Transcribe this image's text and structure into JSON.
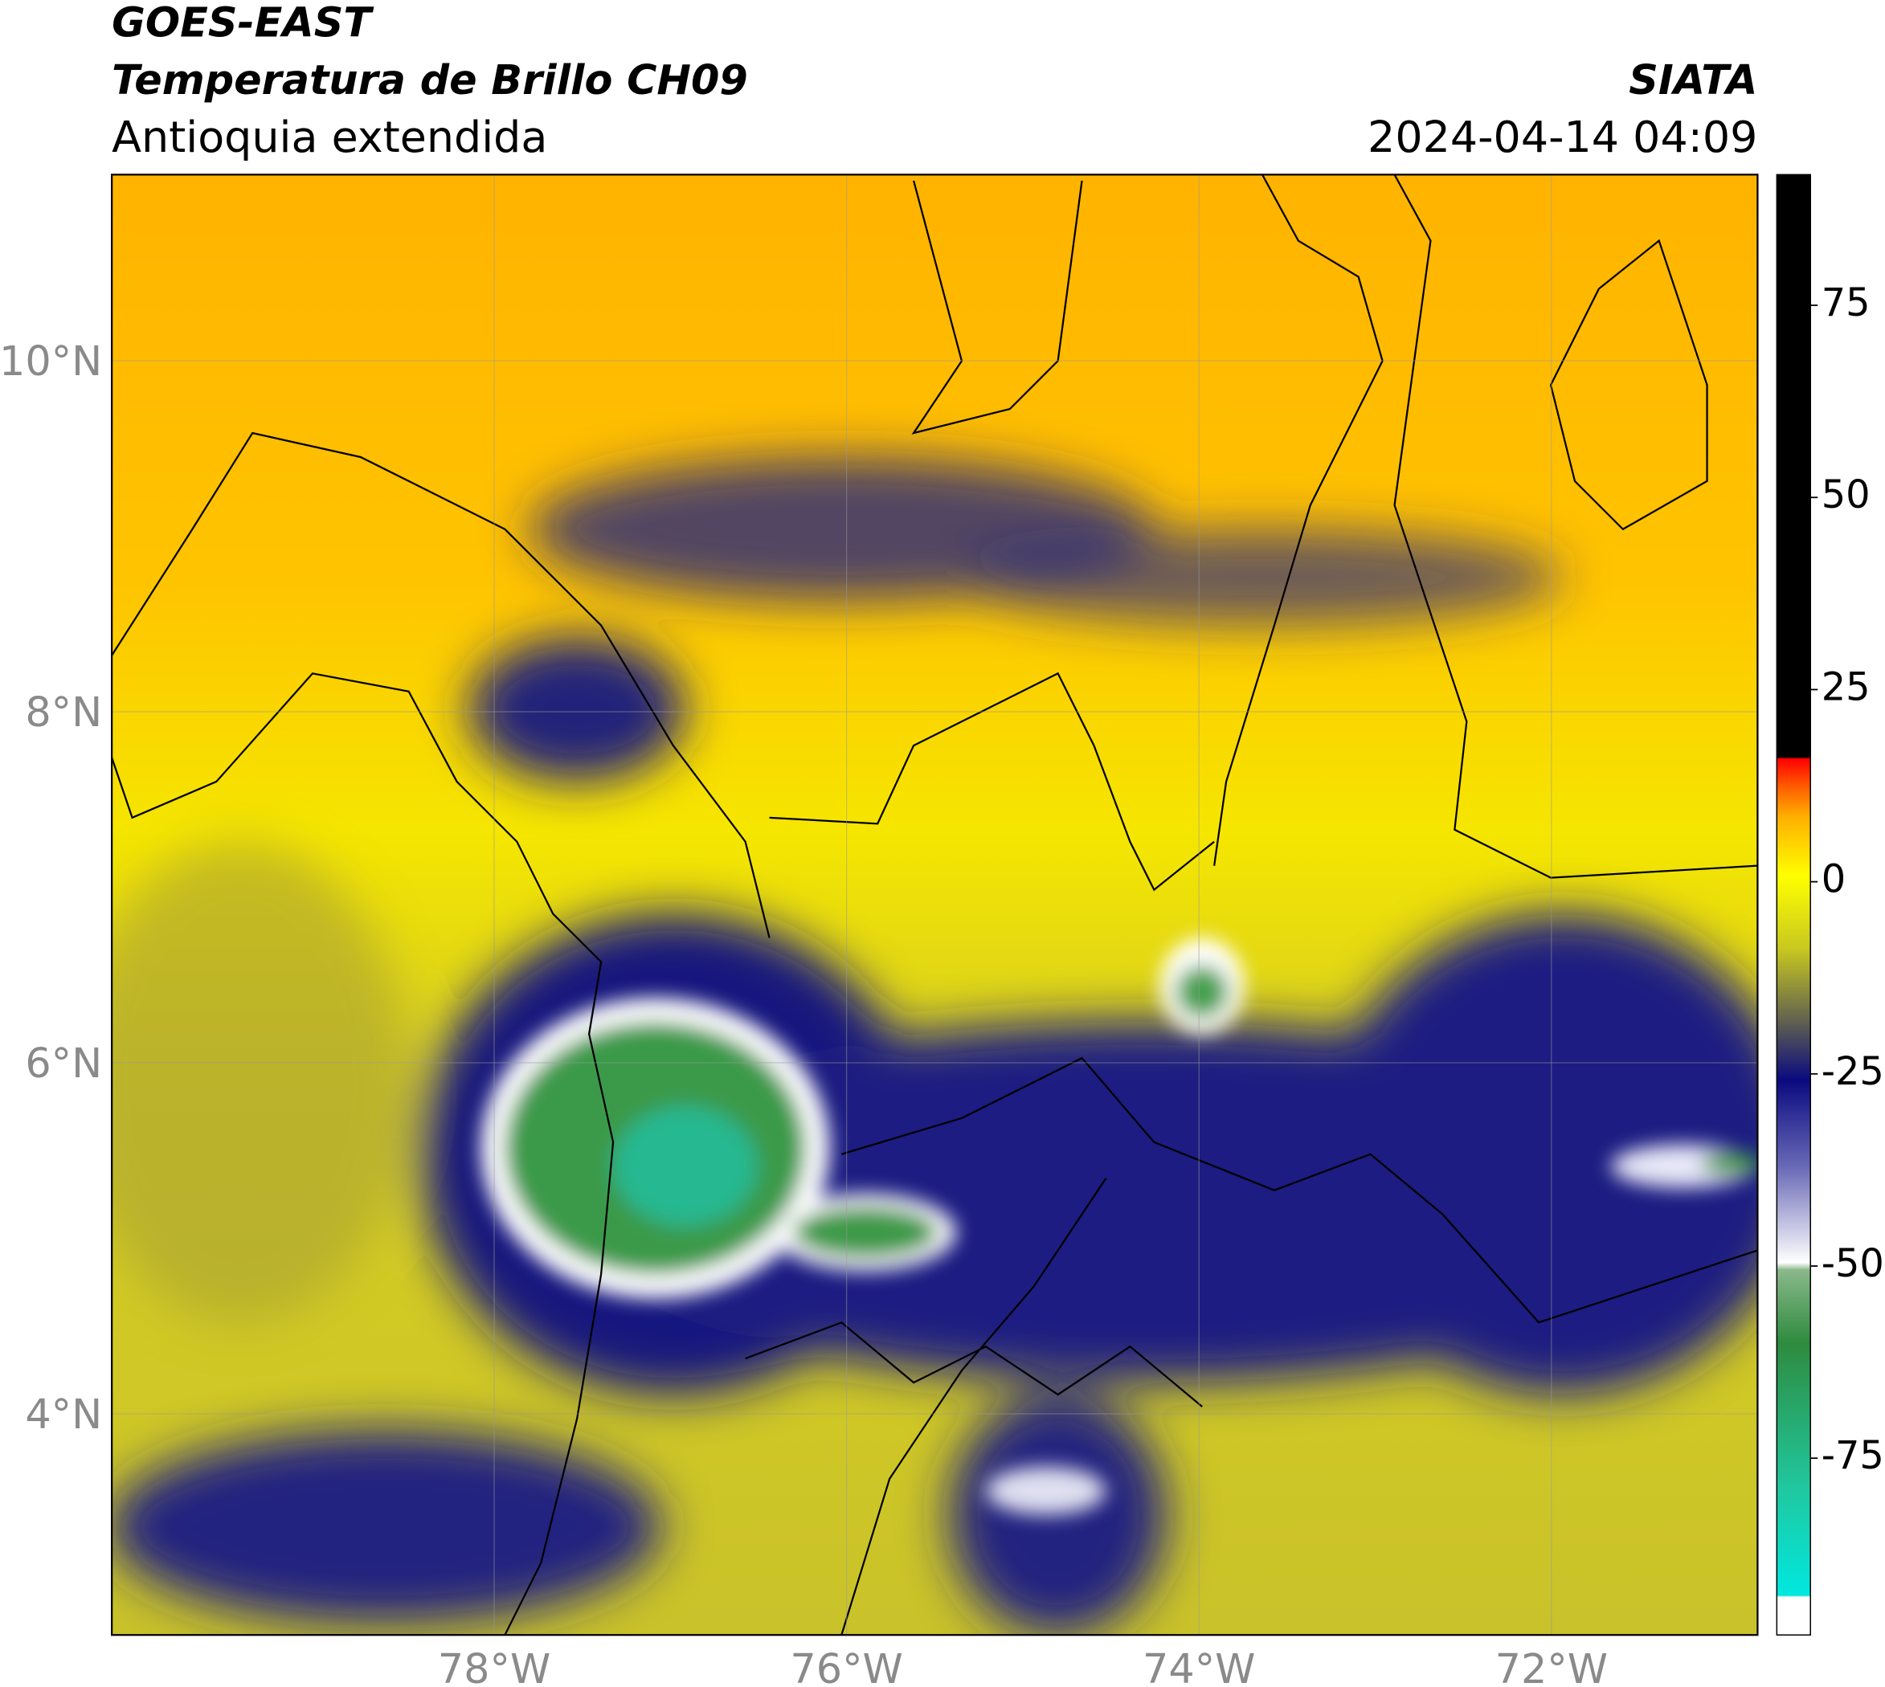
{
  "header": {
    "title": "GOES-EAST",
    "subtitle": "Temperatura de Brillo CH09",
    "region": "Antioquia extendida",
    "source": "SIATA",
    "datetime": "2024-04-14 04:09"
  },
  "map": {
    "xlim": [
      -80.17,
      -70.83
    ],
    "ylim": [
      2.74,
      11.06
    ],
    "xticks": [
      {
        "value": -78,
        "label": "78°W"
      },
      {
        "value": -76,
        "label": "76°W"
      },
      {
        "value": -74,
        "label": "74°W"
      },
      {
        "value": -72,
        "label": "72°W"
      }
    ],
    "yticks": [
      {
        "value": 4,
        "label": "4°N"
      },
      {
        "value": 6,
        "label": "6°N"
      },
      {
        "value": 8,
        "label": "8°N"
      },
      {
        "value": 10,
        "label": "10°N"
      }
    ],
    "grid": true
  },
  "colorbar": {
    "clim": [
      -98,
      92
    ],
    "ticks": [
      -75,
      -50,
      -25,
      0,
      25,
      50,
      75
    ]
  }
}
